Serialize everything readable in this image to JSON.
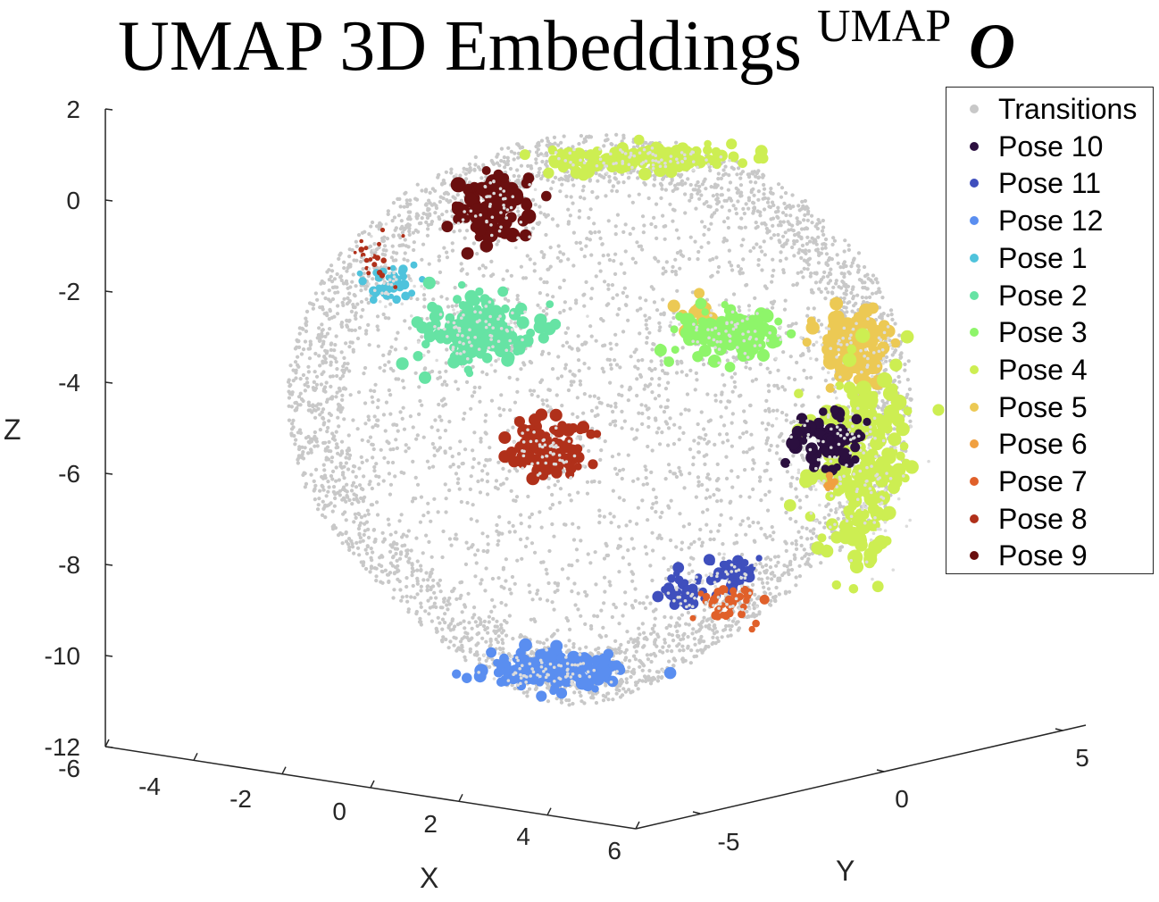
{
  "chart_data": {
    "type": "scatter",
    "title": "UMAP 3D Embeddings",
    "title_superscript": "UMAP",
    "logo_icon": "umap-o-logo",
    "xlabel": "X",
    "ylabel": "Y",
    "zlabel": "Z",
    "xlim": [
      -6,
      6
    ],
    "ylim": [
      -5,
      5
    ],
    "zlim": [
      -12,
      2
    ],
    "x_ticks": [
      "-6",
      "-4",
      "-2",
      "0",
      "2",
      "4",
      "6"
    ],
    "y_ticks": [
      "-5",
      "0",
      "5"
    ],
    "z_ticks": [
      "2",
      "0",
      "-2",
      "-4",
      "-6",
      "-8",
      "-10",
      "-12"
    ],
    "grid": false,
    "legend_position": "top-right",
    "series": [
      {
        "name": "Transitions",
        "color": "#c8c8c8"
      },
      {
        "name": "Pose 10",
        "color": "#2b0f3f"
      },
      {
        "name": "Pose 11",
        "color": "#3f4fbd"
      },
      {
        "name": "Pose 12",
        "color": "#5a8ef0"
      },
      {
        "name": "Pose 1",
        "color": "#4fc3dc"
      },
      {
        "name": "Pose 2",
        "color": "#66e3a4"
      },
      {
        "name": "Pose 3",
        "color": "#8ef56a"
      },
      {
        "name": "Pose 4",
        "color": "#cdee52"
      },
      {
        "name": "Pose 5",
        "color": "#ecc954"
      },
      {
        "name": "Pose 6",
        "color": "#f0a040"
      },
      {
        "name": "Pose 7",
        "color": "#e0602a"
      },
      {
        "name": "Pose 8",
        "color": "#b0301a"
      },
      {
        "name": "Pose 9",
        "color": "#6a0f0f"
      }
    ]
  }
}
